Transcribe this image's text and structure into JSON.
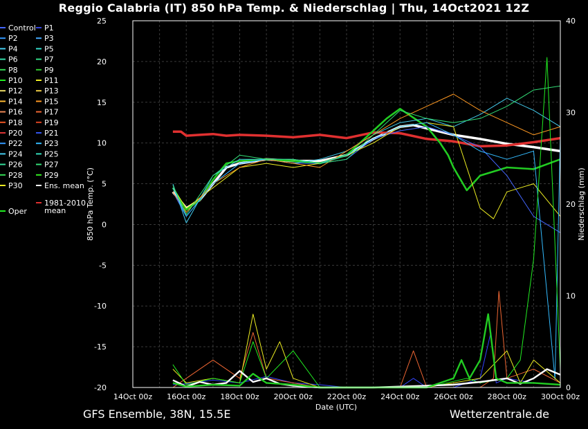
{
  "title": "Reggio Calabria  (IT)  850 hPa Temp. & Niederschlag | Thu, 14Oct2021 12Z",
  "footer": {
    "model": "GFS Ensemble, 38N, 15.5E",
    "site": "Wetterzentrale.de"
  },
  "colors": {
    "background": "#000000",
    "grid": "#3a3a3a",
    "axis": "#ffffff",
    "ens_mean": "#ffffff",
    "oper": "#22cc22",
    "clim_mean": "#e03030"
  },
  "chart_data": {
    "type": "line",
    "xlabel": "Date (UTC)",
    "ylabel": "850 hPa Temp. (°C)",
    "y2label": "Niederschlag (mm)",
    "x_ticks": [
      "14Oct 00z",
      "16Oct 00z",
      "18Oct 00z",
      "20Oct 00z",
      "22Oct 00z",
      "24Oct 00z",
      "26Oct 00z",
      "28Oct 00z",
      "30Oct 00z"
    ],
    "x_range_days": [
      0,
      16
    ],
    "ylim": [
      -20,
      25
    ],
    "y_ticks": [
      25,
      20,
      15,
      10,
      5,
      0,
      -5,
      -10,
      -15,
      -20
    ],
    "y2lim": [
      0,
      40
    ],
    "y2_ticks": [
      40,
      30,
      20,
      10,
      0
    ],
    "grid": true,
    "legend_position": "left",
    "legend": [
      {
        "name": "Control",
        "color": "#4466ff"
      },
      {
        "name": "P1",
        "color": "#3344dd"
      },
      {
        "name": "P2",
        "color": "#3399ff"
      },
      {
        "name": "P3",
        "color": "#44aaff"
      },
      {
        "name": "P4",
        "color": "#44ccee"
      },
      {
        "name": "P5",
        "color": "#33ddcc"
      },
      {
        "name": "P6",
        "color": "#33ddaa"
      },
      {
        "name": "P7",
        "color": "#33dd88"
      },
      {
        "name": "P8",
        "color": "#33dd55"
      },
      {
        "name": "P9",
        "color": "#33cc33"
      },
      {
        "name": "P10",
        "color": "#22ee22"
      },
      {
        "name": "P11",
        "color": "#eeee22"
      },
      {
        "name": "P12",
        "color": "#eedd66"
      },
      {
        "name": "P13",
        "color": "#eecc44"
      },
      {
        "name": "P14",
        "color": "#ffbb33"
      },
      {
        "name": "P15",
        "color": "#ff9922"
      },
      {
        "name": "P16",
        "color": "#ee8855"
      },
      {
        "name": "P17",
        "color": "#ee6633"
      },
      {
        "name": "P18",
        "color": "#ee5522"
      },
      {
        "name": "P19",
        "color": "#dd4422"
      },
      {
        "name": "P20",
        "color": "#dd3333"
      },
      {
        "name": "P21",
        "color": "#3355ee"
      },
      {
        "name": "P22",
        "color": "#3399ff"
      },
      {
        "name": "P23",
        "color": "#33bbff"
      },
      {
        "name": "P24",
        "color": "#44ccee"
      },
      {
        "name": "P25",
        "color": "#33ddbb"
      },
      {
        "name": "P26",
        "color": "#33dd99"
      },
      {
        "name": "P27",
        "color": "#33dd77"
      },
      {
        "name": "P28",
        "color": "#33dd55"
      },
      {
        "name": "P29",
        "color": "#33ee22"
      },
      {
        "name": "P30",
        "color": "#eeee22"
      },
      {
        "name": "Ens. mean",
        "color": "#ffffff"
      },
      {
        "name": "1981-2010 mean",
        "color": "#e03030"
      },
      {
        "name": "Oper",
        "color": "#22ee22"
      }
    ],
    "series": [
      {
        "name": "Ens. mean",
        "axis": "temp",
        "color": "#ffffff",
        "x": [
          1.5,
          2.0,
          2.5,
          3.0,
          3.5,
          4.0,
          5.0,
          6.0,
          7.0,
          8.0,
          9.0,
          10.0,
          10.5,
          11.0,
          12.0,
          13.0,
          14.0,
          15.0,
          16.0
        ],
        "y": [
          4,
          2,
          3,
          5,
          7,
          7.5,
          8,
          7.8,
          7.8,
          8.5,
          10.5,
          12,
          12.2,
          11.8,
          11,
          10.5,
          9.9,
          9.5,
          9
        ]
      },
      {
        "name": "1981-2010 mean",
        "axis": "temp",
        "color": "#e03030",
        "x": [
          1.5,
          1.8,
          2.0,
          2.5,
          3.0,
          3.5,
          4.0,
          5.0,
          6.0,
          7.0,
          8.0,
          9.0,
          10.0,
          11.0,
          12.0,
          13.0,
          14.0,
          15.0,
          16.0
        ],
        "y": [
          11.4,
          11.4,
          10.9,
          11,
          11.1,
          10.9,
          11,
          10.9,
          10.7,
          11,
          10.6,
          11.3,
          11.2,
          10.5,
          10.2,
          9.6,
          9.7,
          10.1,
          10.6
        ]
      },
      {
        "name": "Oper",
        "axis": "temp",
        "color": "#22cc22",
        "x": [
          1.5,
          2.0,
          2.5,
          3.0,
          3.5,
          4.0,
          5.0,
          6.0,
          7.0,
          8.0,
          9.0,
          9.5,
          10.0,
          11.0,
          11.5,
          11.8,
          12.0,
          12.5,
          13.0,
          14.0,
          15.0,
          16.0
        ],
        "y": [
          4.5,
          1.8,
          3,
          5.5,
          7.5,
          7.8,
          8,
          7.8,
          7.5,
          8.5,
          11.5,
          13,
          14.2,
          12,
          10,
          8.5,
          7,
          4.2,
          6,
          7,
          6.8,
          8
        ]
      },
      {
        "name": "Control",
        "axis": "temp",
        "color": "#4466ff",
        "x": [
          1.5,
          2.0,
          3.0,
          4.0,
          5.0,
          6.0,
          7.0,
          8.0,
          9.0,
          10.0,
          11.0,
          12.0,
          13.0,
          14.0,
          15.0,
          16.0
        ],
        "y": [
          4,
          1,
          5,
          7.5,
          8,
          7.5,
          7.5,
          8,
          10.5,
          11.5,
          12,
          11,
          9.5,
          6,
          1,
          -1
        ]
      },
      {
        "name": "P4",
        "axis": "temp",
        "color": "#44ccee",
        "x": [
          1.5,
          2.0,
          3.0,
          4.0,
          5.0,
          6.0,
          7.0,
          8.0,
          9.0,
          10.0,
          11.0,
          12.0,
          13.0,
          14.0,
          15.0,
          16.0
        ],
        "y": [
          5,
          0.2,
          6,
          8,
          8,
          7.5,
          8,
          9,
          11,
          12.5,
          13,
          12,
          13.5,
          15.5,
          14,
          12
        ]
      },
      {
        "name": "P11",
        "axis": "temp",
        "color": "#eeee22",
        "x": [
          1.5,
          2.0,
          3.0,
          4.0,
          5.0,
          6.0,
          7.0,
          8.0,
          9.0,
          10.0,
          11.0,
          12.0,
          13.0,
          13.5,
          14.0,
          15.0,
          16.0
        ],
        "y": [
          4.5,
          2,
          4.5,
          7,
          7.5,
          7,
          7.5,
          8.5,
          10,
          12,
          12.5,
          12,
          2,
          0.7,
          4,
          5,
          1
        ]
      },
      {
        "name": "P15",
        "axis": "temp",
        "color": "#ff9922",
        "x": [
          1.5,
          2.0,
          3.0,
          4.0,
          5.0,
          6.0,
          7.0,
          8.0,
          9.0,
          10.0,
          11.0,
          12.0,
          13.0,
          14.0,
          15.0,
          16.0
        ],
        "y": [
          4,
          1.5,
          5,
          7,
          8,
          7.5,
          7,
          9,
          11,
          13,
          14.5,
          16,
          14,
          12.5,
          11,
          12
        ]
      },
      {
        "name": "P23",
        "axis": "temp",
        "color": "#33bbff",
        "x": [
          1.5,
          2.0,
          3.0,
          4.0,
          5.0,
          6.0,
          7.0,
          8.0,
          9.0,
          10.0,
          11.0,
          12.0,
          13.0,
          14.0,
          15.0,
          15.8,
          16.0
        ],
        "y": [
          4.5,
          1,
          5,
          7.5,
          8,
          8,
          7.5,
          8.5,
          10.5,
          12,
          12.5,
          11,
          9,
          8,
          9,
          -19,
          11
        ]
      },
      {
        "name": "P27",
        "axis": "temp",
        "color": "#33dd77",
        "x": [
          1.5,
          2.0,
          3.0,
          4.0,
          5.0,
          6.0,
          7.0,
          8.0,
          9.0,
          10.0,
          11.0,
          12.0,
          13.0,
          14.0,
          15.0,
          16.0
        ],
        "y": [
          4.8,
          1.2,
          6,
          8.5,
          8,
          8,
          7.5,
          8,
          11,
          14,
          13,
          12.5,
          13,
          14.5,
          16.5,
          17
        ]
      },
      {
        "name": "Control precip",
        "axis": "precip",
        "color": "#3344ff",
        "x": [
          1.5,
          2.0,
          3.0,
          4.0,
          5.0,
          6.0,
          7.0,
          8.0,
          9.0,
          10.0,
          10.5,
          11.0,
          12.0,
          13.0,
          13.4,
          13.6,
          14.0,
          15.0,
          16.0
        ],
        "y": [
          0.3,
          0.4,
          0.8,
          0.5,
          1.2,
          0.5,
          0.3,
          0,
          0,
          0,
          1,
          0,
          0,
          1,
          6,
          0.5,
          1,
          0.5,
          0.3
        ]
      },
      {
        "name": "P17 precip",
        "axis": "precip",
        "color": "#ee6633",
        "x": [
          1.5,
          2.0,
          3.0,
          4.0,
          4.5,
          5.0,
          6.0,
          7.0,
          9.0,
          10.0,
          10.5,
          11.0,
          13.0,
          13.5,
          13.7,
          14.0,
          15.0,
          16.0
        ],
        "y": [
          0,
          1,
          3,
          1,
          6,
          1,
          0.5,
          0,
          0,
          0,
          4,
          0,
          0,
          1,
          10.5,
          1,
          2,
          0.5
        ]
      },
      {
        "name": "P11 precip",
        "axis": "precip",
        "color": "#eeee22",
        "x": [
          1.5,
          2.0,
          3.0,
          4.0,
          4.5,
          5.0,
          5.5,
          6.0,
          7.0,
          9.0,
          11.0,
          13.0,
          14.0,
          14.5,
          15.0,
          16.0
        ],
        "y": [
          2,
          0.5,
          1,
          0.5,
          8,
          2,
          5,
          1,
          0,
          0,
          0,
          1,
          4,
          0.5,
          3,
          0.5
        ]
      },
      {
        "name": "P10 precip",
        "axis": "precip",
        "color": "#22ee22",
        "x": [
          1.5,
          2.0,
          3.0,
          4.0,
          4.5,
          5.0,
          6.0,
          7.0,
          9.0,
          11.0,
          12.5,
          13.0,
          14.0,
          14.5,
          15.0,
          15.5,
          16.0
        ],
        "y": [
          2.5,
          0.3,
          1,
          0.5,
          5,
          1,
          4,
          0,
          0,
          0,
          1,
          0.5,
          1,
          3,
          14,
          36,
          2
        ]
      },
      {
        "name": "Ens. mean precip",
        "axis": "precip",
        "color": "#ffffff",
        "x": [
          1.5,
          2.0,
          2.5,
          3.0,
          3.5,
          4.0,
          4.5,
          5.0,
          5.5,
          6.0,
          7.0,
          8.0,
          9.0,
          10.0,
          11.0,
          12.0,
          13.0,
          14.0,
          14.5,
          15.0,
          15.5,
          16.0
        ],
        "y": [
          0.8,
          0.1,
          0.6,
          0.3,
          0.5,
          1.8,
          0.6,
          1,
          0.4,
          0.2,
          0,
          0,
          0,
          0.1,
          0.2,
          0.3,
          0.6,
          1,
          0.4,
          1,
          2,
          1.4
        ]
      },
      {
        "name": "Oper precip",
        "axis": "precip",
        "color": "#22cc22",
        "x": [
          1.5,
          2.0,
          3.0,
          4.0,
          4.5,
          5.0,
          6.0,
          7.0,
          9.0,
          10.0,
          11.0,
          12.0,
          12.3,
          12.6,
          13.0,
          13.3,
          13.6,
          14.0,
          15.0,
          16.0
        ],
        "y": [
          0.5,
          0.1,
          0.3,
          0.2,
          1.5,
          0.5,
          0.3,
          0,
          0,
          0,
          0,
          1,
          3,
          1,
          3,
          8,
          1,
          0.5,
          0.5,
          0.3
        ]
      }
    ]
  }
}
